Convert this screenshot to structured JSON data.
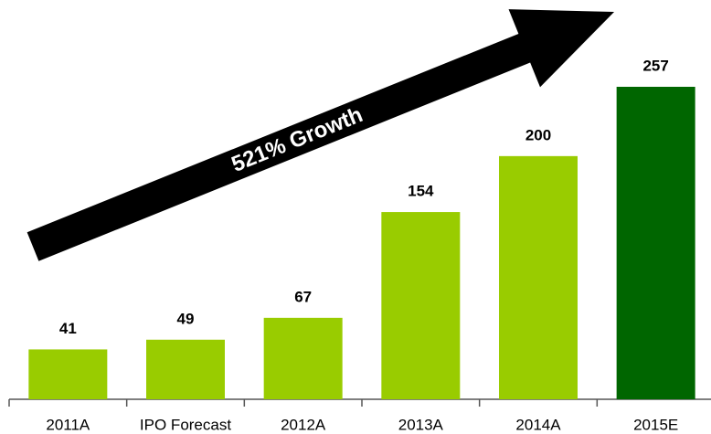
{
  "chart_data": {
    "type": "bar",
    "categories": [
      "2011A",
      "IPO Forecast",
      "2012A",
      "2013A",
      "2014A",
      "2015E"
    ],
    "values": [
      41,
      49,
      67,
      154,
      200,
      257
    ],
    "colors": [
      "#99cc00",
      "#99cc00",
      "#99cc00",
      "#99cc00",
      "#99cc00",
      "#006600"
    ],
    "annotation": "521% Growth"
  }
}
